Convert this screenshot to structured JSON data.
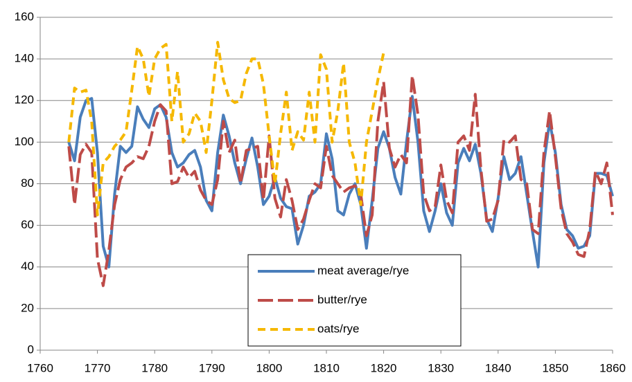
{
  "chart_data": {
    "type": "line",
    "x": [
      1765,
      1766,
      1767,
      1768,
      1769,
      1770,
      1771,
      1772,
      1773,
      1774,
      1775,
      1776,
      1777,
      1778,
      1779,
      1780,
      1781,
      1782,
      1783,
      1784,
      1785,
      1786,
      1787,
      1788,
      1789,
      1790,
      1791,
      1792,
      1793,
      1794,
      1795,
      1796,
      1797,
      1798,
      1799,
      1800,
      1801,
      1802,
      1803,
      1804,
      1805,
      1806,
      1807,
      1808,
      1809,
      1810,
      1811,
      1812,
      1813,
      1814,
      1815,
      1816,
      1817,
      1818,
      1819,
      1820,
      1821,
      1822,
      1823,
      1824,
      1825,
      1826,
      1827,
      1828,
      1829,
      1830,
      1831,
      1832,
      1833,
      1834,
      1835,
      1836,
      1837,
      1838,
      1839,
      1840,
      1841,
      1842,
      1843,
      1844,
      1845,
      1846,
      1847,
      1848,
      1849,
      1850,
      1851,
      1852,
      1853,
      1854,
      1855,
      1856,
      1857,
      1858,
      1859,
      1860
    ],
    "series": [
      {
        "name": "meat average/rye",
        "color": "#4a7ebb",
        "dash": "solid",
        "values": [
          100,
          91,
          112,
          120,
          121,
          95,
          50,
          40,
          75,
          98,
          95,
          98,
          117,
          111,
          107,
          116,
          118,
          112,
          95,
          88,
          90,
          94,
          96,
          88,
          72,
          67,
          95,
          113,
          103,
          90,
          80,
          92,
          102,
          88,
          70,
          74,
          83,
          73,
          69,
          68,
          51,
          60,
          74,
          76,
          80,
          104,
          92,
          67,
          65,
          75,
          80,
          70,
          49,
          72,
          97,
          105,
          97,
          83,
          75,
          100,
          122,
          100,
          67,
          57,
          67,
          80,
          66,
          60,
          90,
          97,
          91,
          99,
          85,
          63,
          57,
          73,
          93,
          82,
          85,
          93,
          75,
          57,
          40,
          90,
          110,
          95,
          70,
          58,
          55,
          49,
          50,
          55,
          85,
          85,
          84,
          74
        ]
      },
      {
        "name": "butter/rye",
        "color": "#be4b48",
        "dash": "longdash",
        "values": [
          98,
          70,
          94,
          99,
          95,
          44,
          31,
          48,
          70,
          82,
          88,
          90,
          93,
          92,
          98,
          110,
          118,
          115,
          80,
          81,
          88,
          83,
          86,
          77,
          72,
          70,
          82,
          110,
          95,
          101,
          80,
          96,
          97,
          98,
          72,
          103,
          73,
          64,
          82,
          72,
          58,
          63,
          72,
          80,
          78,
          98,
          84,
          80,
          76,
          78,
          79,
          75,
          55,
          65,
          110,
          129,
          97,
          88,
          94,
          90,
          132,
          113,
          75,
          67,
          69,
          89,
          72,
          66,
          100,
          103,
          96,
          123,
          87,
          62,
          63,
          72,
          101,
          100,
          103,
          82,
          80,
          58,
          56,
          95,
          115,
          93,
          68,
          56,
          52,
          46,
          45,
          58,
          86,
          80,
          90,
          65
        ]
      },
      {
        "name": "oats/rye",
        "color": "#f5b800",
        "dash": "dash",
        "values": [
          100,
          126,
          124,
          125,
          110,
          65,
          90,
          93,
          98,
          101,
          105,
          125,
          146,
          140,
          122,
          140,
          145,
          147,
          110,
          134,
          100,
          104,
          114,
          110,
          95,
          120,
          148,
          130,
          121,
          119,
          120,
          133,
          140,
          140,
          128,
          103,
          80,
          104,
          124,
          96,
          105,
          101,
          124,
          100,
          142,
          135,
          100,
          115,
          138,
          100,
          90,
          70,
          100,
          115,
          130,
          143,
          null,
          null,
          null,
          null,
          null,
          null,
          null,
          null,
          null,
          null,
          null,
          null,
          null,
          null,
          null,
          null,
          null,
          null,
          null,
          null,
          null,
          null,
          null,
          null,
          null,
          null,
          null,
          null,
          null,
          null,
          null,
          null,
          null,
          null,
          null,
          null,
          null,
          null,
          null,
          null
        ]
      }
    ],
    "xlim": [
      1760,
      1860
    ],
    "xticks": [
      1760,
      1770,
      1780,
      1790,
      1800,
      1810,
      1820,
      1830,
      1840,
      1850,
      1860
    ],
    "ylim": [
      0,
      160
    ],
    "yticks": [
      0,
      20,
      40,
      60,
      80,
      100,
      120,
      140,
      160
    ],
    "grid": true,
    "legend": "lower center"
  }
}
